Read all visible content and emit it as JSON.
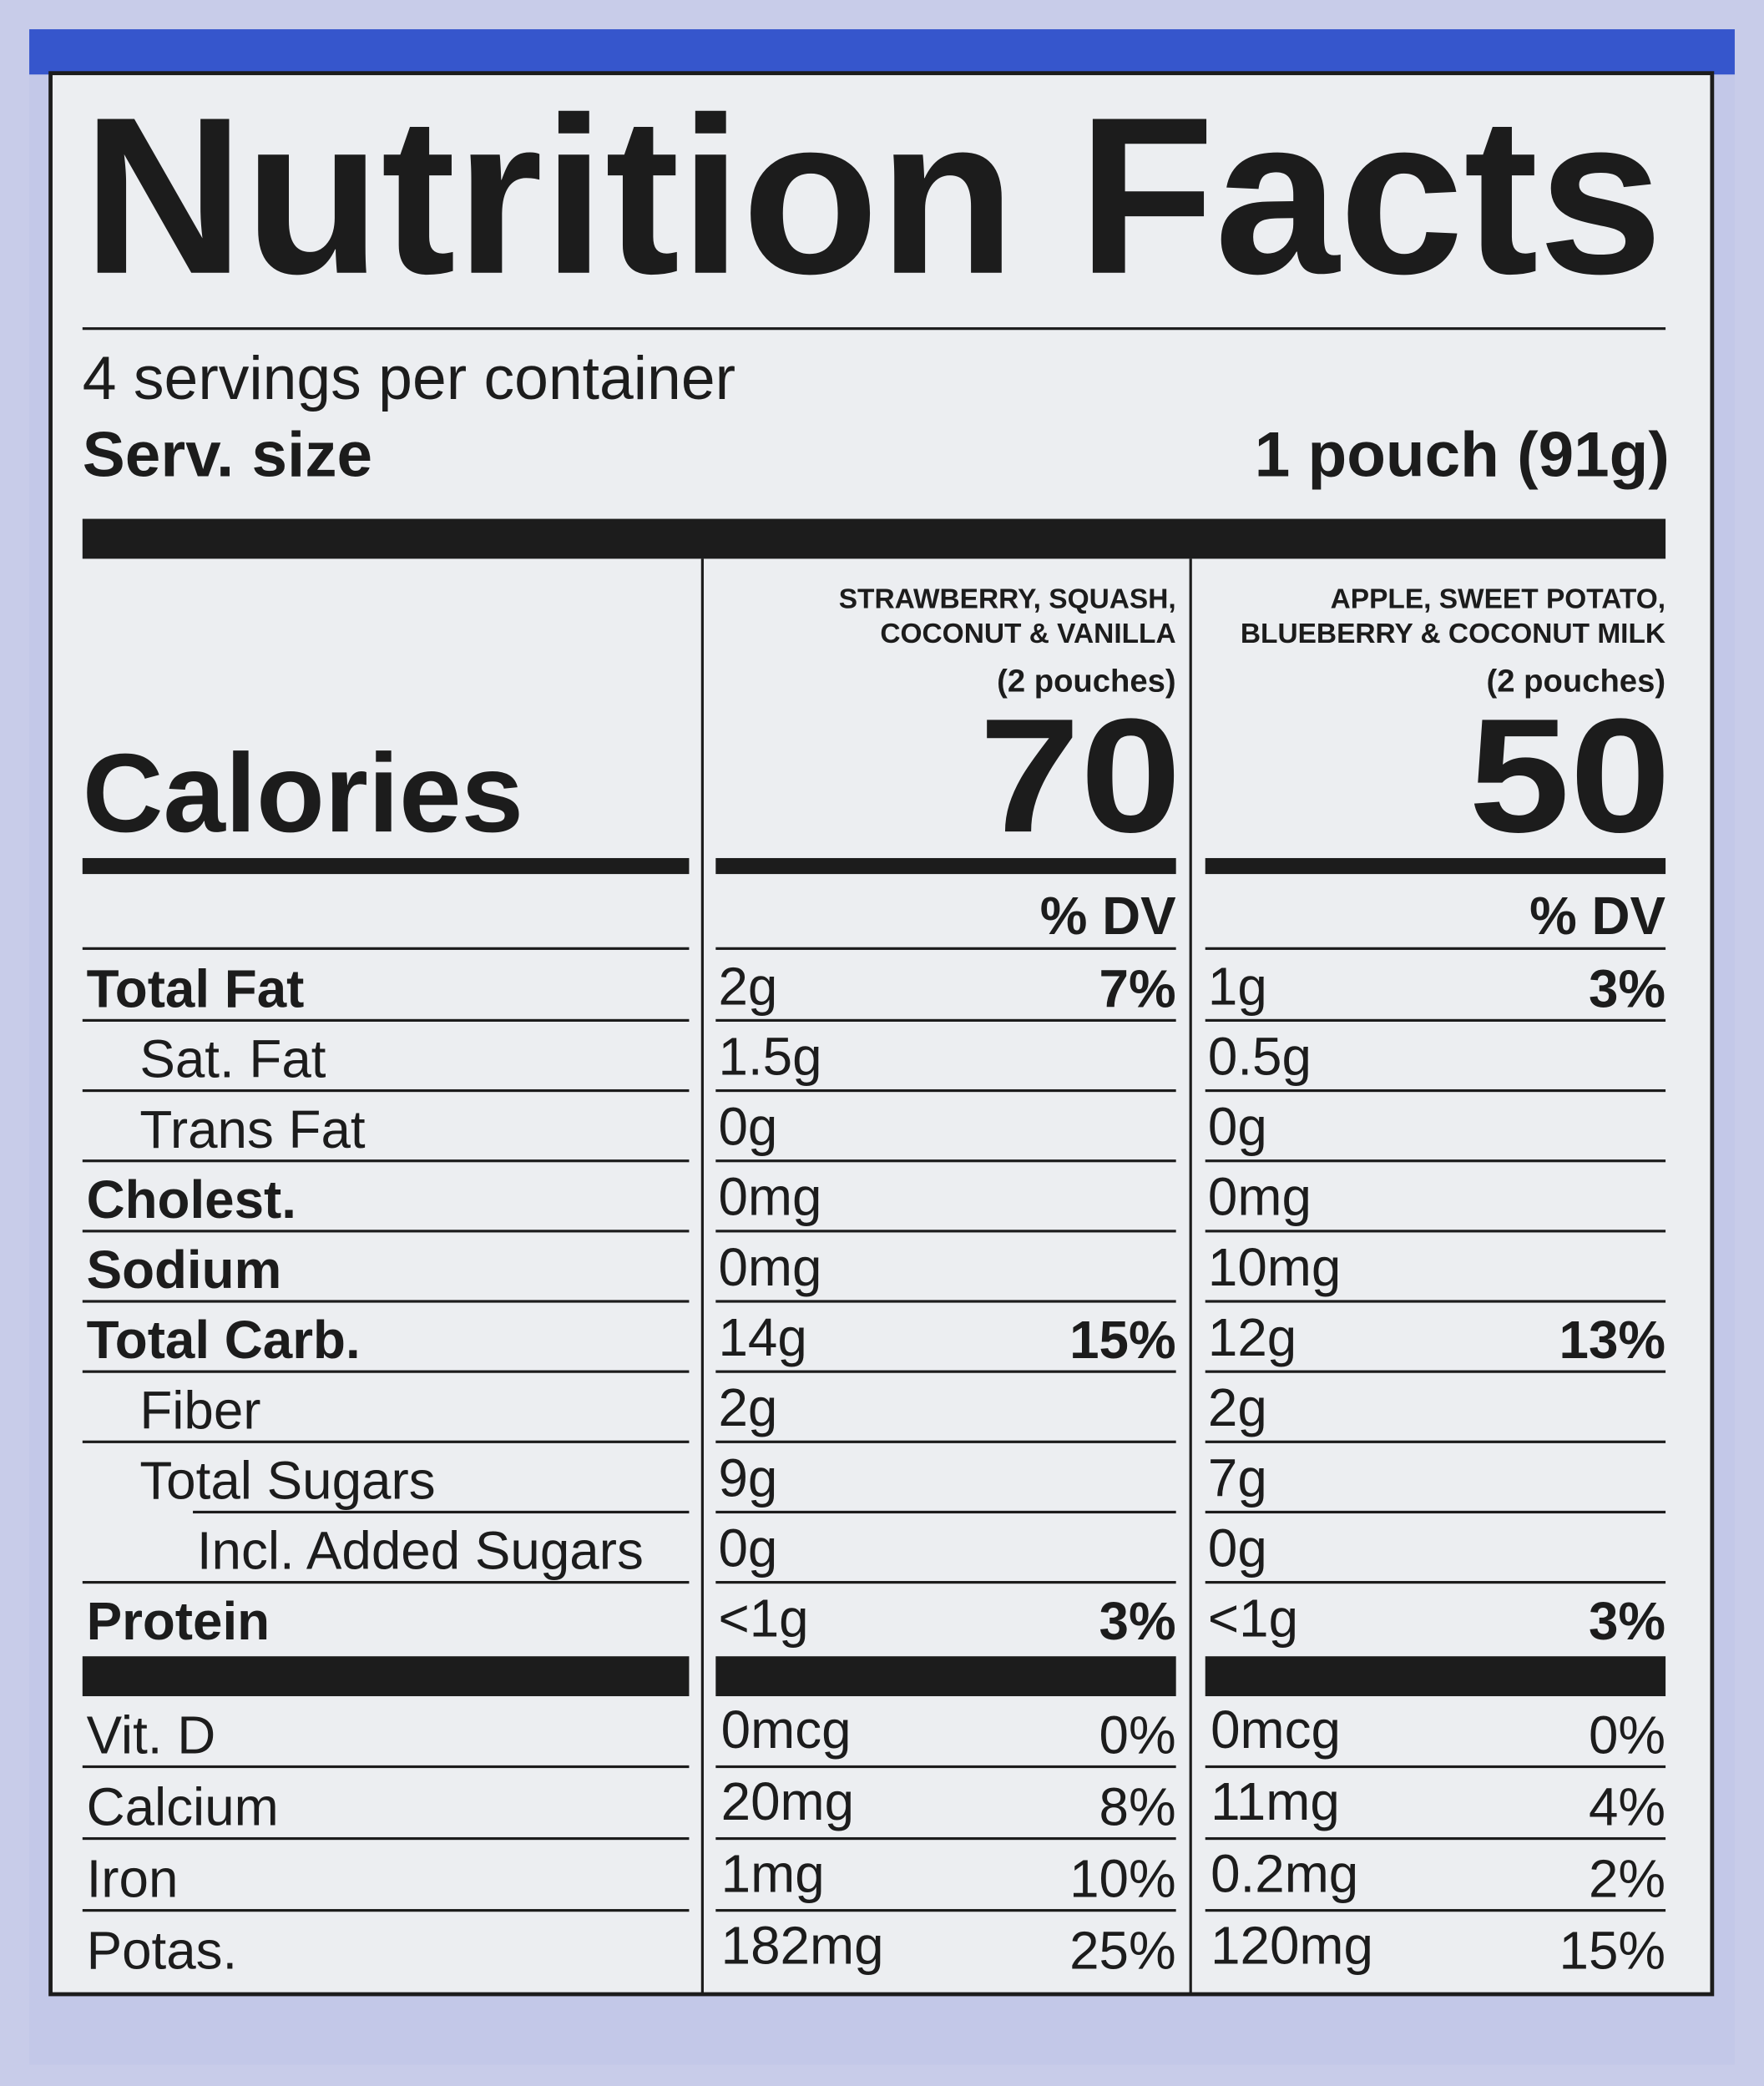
{
  "title": "Nutrition Facts",
  "servings": "4 servings per container",
  "serving_size": {
    "label": "Serv. size",
    "value": "1 pouch (91g)"
  },
  "calories_label": "Calories",
  "columns": [
    {
      "name_lines": [
        "STRAWBERRY, SQUASH,",
        "COCONUT & VANILLA"
      ],
      "portion": "(2 pouches)",
      "calories": "70",
      "dv_header": "% DV"
    },
    {
      "name_lines": [
        "APPLE, SWEET POTATO,",
        "BLUEBERRY & COCONUT MILK"
      ],
      "portion": "(2 pouches)",
      "calories": "50",
      "dv_header": "% DV"
    }
  ],
  "nutrients": [
    {
      "label": "Total Fat",
      "bold": true,
      "level": 0,
      "values": [
        {
          "amount": "2g",
          "dv": "7%"
        },
        {
          "amount": "1g",
          "dv": "3%"
        }
      ]
    },
    {
      "label": "Sat. Fat",
      "bold": false,
      "level": 1,
      "values": [
        {
          "amount": "1.5g"
        },
        {
          "amount": "0.5g"
        }
      ]
    },
    {
      "label": "Trans Fat",
      "bold": false,
      "level": 1,
      "values": [
        {
          "amount": "0g"
        },
        {
          "amount": "0g"
        }
      ]
    },
    {
      "label": "Cholest.",
      "bold": true,
      "level": 0,
      "values": [
        {
          "amount": "0mg"
        },
        {
          "amount": "0mg"
        }
      ]
    },
    {
      "label": "Sodium",
      "bold": true,
      "level": 0,
      "values": [
        {
          "amount": "0mg"
        },
        {
          "amount": "10mg"
        }
      ]
    },
    {
      "label": "Total Carb.",
      "bold": true,
      "level": 0,
      "values": [
        {
          "amount": "14g",
          "dv": "15%"
        },
        {
          "amount": "12g",
          "dv": "13%"
        }
      ]
    },
    {
      "label": "Fiber",
      "bold": false,
      "level": 1,
      "values": [
        {
          "amount": "2g"
        },
        {
          "amount": "2g"
        }
      ]
    },
    {
      "label": "Total Sugars",
      "bold": false,
      "level": 1,
      "values": [
        {
          "amount": "9g"
        },
        {
          "amount": "7g"
        }
      ]
    },
    {
      "label": "Incl. Added Sugars",
      "bold": false,
      "level": 2,
      "values": [
        {
          "amount": "0g"
        },
        {
          "amount": "0g"
        }
      ]
    },
    {
      "label": "Protein",
      "bold": true,
      "level": 0,
      "values": [
        {
          "amount": "<1g",
          "dv": "3%"
        },
        {
          "amount": "<1g",
          "dv": "3%"
        }
      ]
    }
  ],
  "vitamins": [
    {
      "label": "Vit. D",
      "values": [
        {
          "amount": "0mcg",
          "dv": "0%"
        },
        {
          "amount": "0mcg",
          "dv": "0%"
        }
      ]
    },
    {
      "label": "Calcium",
      "values": [
        {
          "amount": "20mg",
          "dv": "8%"
        },
        {
          "amount": "11mg",
          "dv": "4%"
        }
      ]
    },
    {
      "label": "Iron",
      "values": [
        {
          "amount": "1mg",
          "dv": "10%"
        },
        {
          "amount": "0.2mg",
          "dv": "2%"
        }
      ]
    },
    {
      "label": "Potas.",
      "values": [
        {
          "amount": "182mg",
          "dv": "25%"
        },
        {
          "amount": "120mg",
          "dv": "15%"
        }
      ]
    }
  ]
}
